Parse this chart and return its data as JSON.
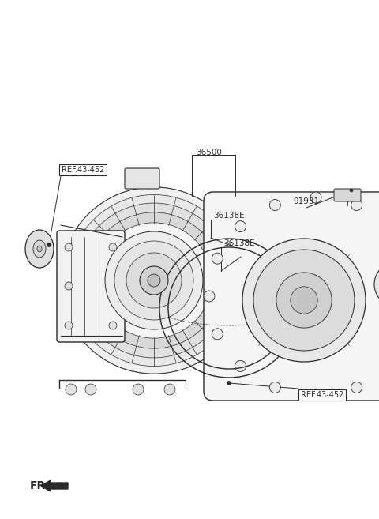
{
  "bg_color": "#ffffff",
  "lc": "#2a2a2a",
  "fig_width": 4.8,
  "fig_height": 6.57,
  "dpi": 100,
  "labels": {
    "ref1": "REF.43-452",
    "part36500": "36500",
    "part36138E_1": "36138E",
    "part36138E_2": "36138E",
    "part91931": "91931",
    "ref2": "REF.43-452",
    "fr": "FR."
  }
}
